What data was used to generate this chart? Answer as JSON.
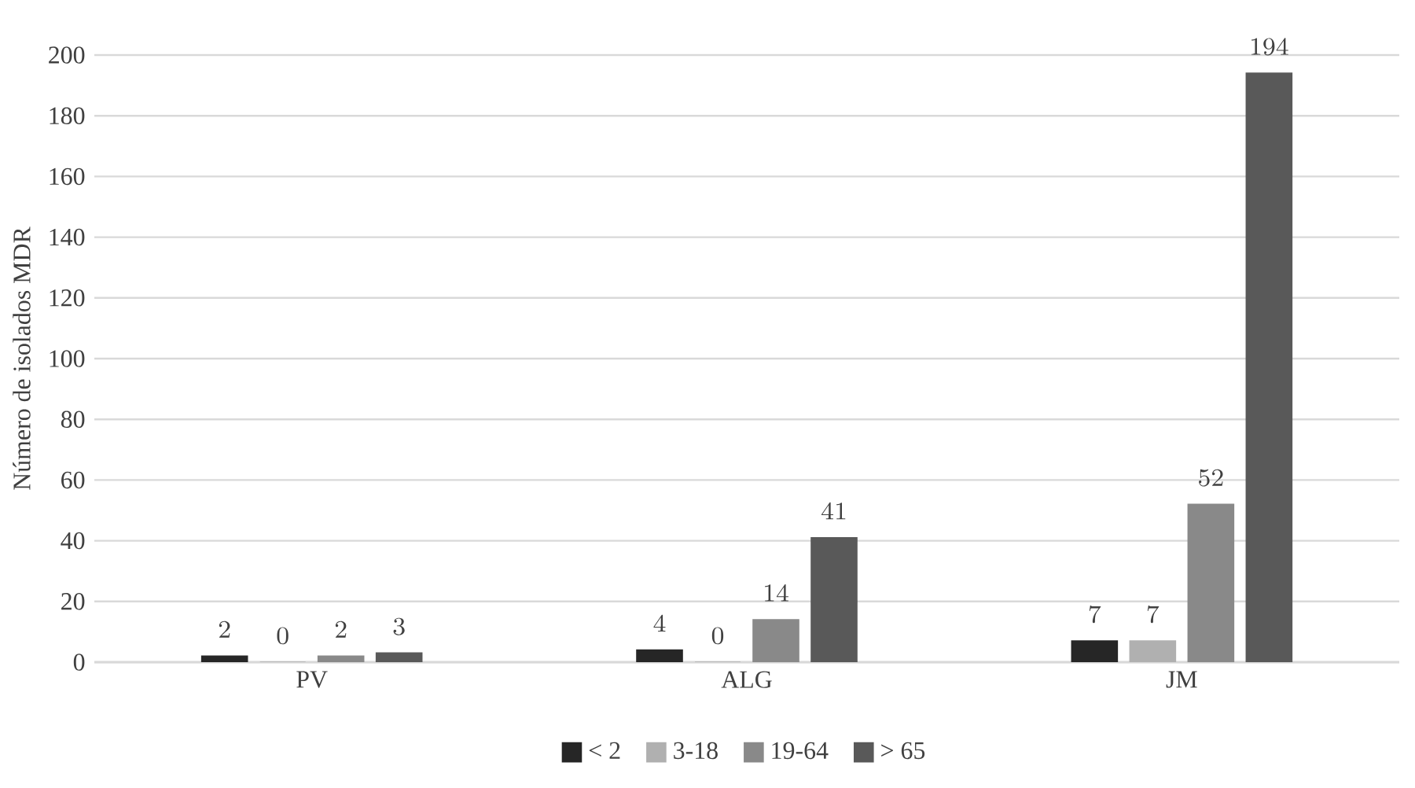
{
  "chart_data": {
    "type": "bar",
    "ylabel": "Número de isolados MDR",
    "categories": [
      "PV",
      "ALG",
      "JM"
    ],
    "series": [
      {
        "name": "< 2",
        "color": "#262626",
        "values": [
          2,
          4,
          7
        ]
      },
      {
        "name": "3-18",
        "color": "#b0b0b0",
        "values": [
          0,
          0,
          7
        ]
      },
      {
        "name": "19-64",
        "color": "#898989",
        "values": [
          2,
          14,
          52
        ]
      },
      {
        "name": "> 65",
        "color": "#595959",
        "values": [
          3,
          41,
          194
        ]
      }
    ],
    "ylim": [
      0,
      200
    ],
    "yticks": [
      0,
      20,
      40,
      60,
      80,
      100,
      120,
      140,
      160,
      180,
      200
    ],
    "grid": "y",
    "legend": "bottom",
    "data_labels": true
  }
}
